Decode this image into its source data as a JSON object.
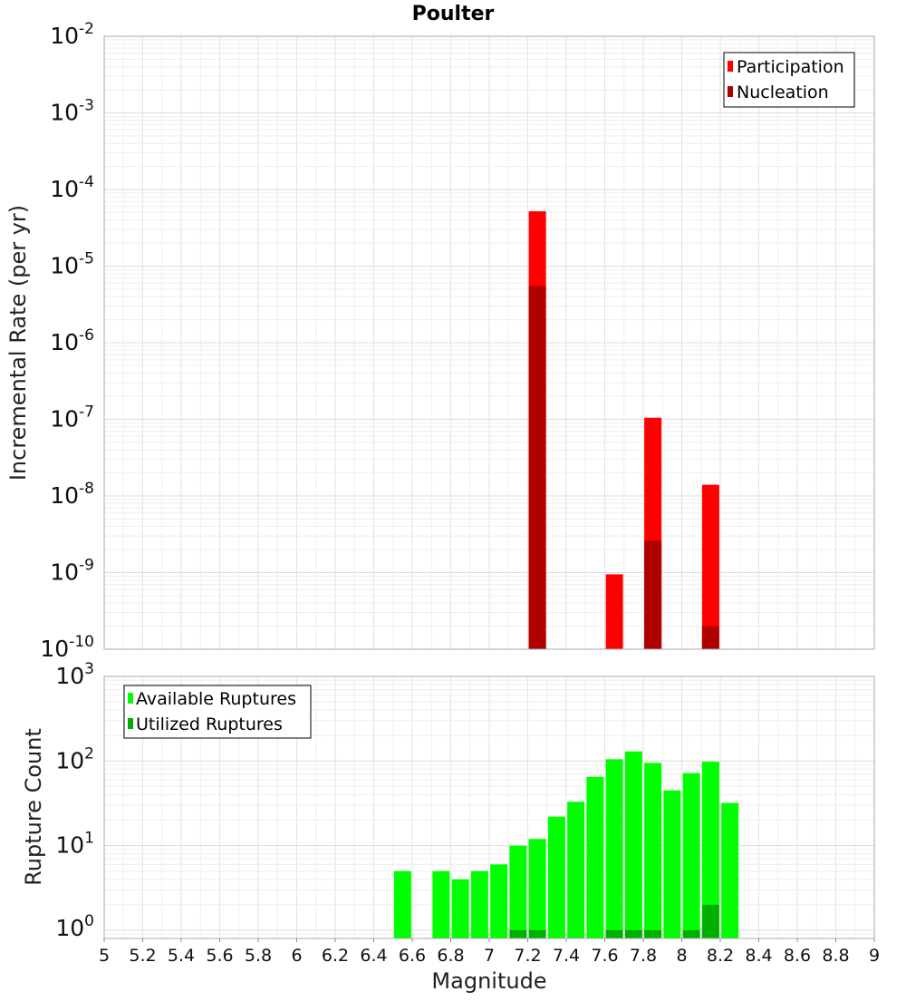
{
  "chart_data": [
    {
      "type": "bar",
      "title": "Poulter",
      "xlabel": "",
      "ylabel": "Incremental Rate (per yr)",
      "yscale": "log",
      "xlim": [
        5,
        9
      ],
      "ylim": [
        1e-10,
        0.01
      ],
      "y_tick_exponents": [
        "-10",
        "-9",
        "-8",
        "-7",
        "-6",
        "-5",
        "-4",
        "-3",
        "-2"
      ],
      "grid": true,
      "legend_position": "top-right",
      "x": [
        7.25,
        7.65,
        7.85,
        8.15
      ],
      "series": [
        {
          "name": "Participation",
          "color": "#ff0000",
          "values": [
            5.2e-05,
            9.5e-10,
            1.05e-07,
            1.4e-08
          ]
        },
        {
          "name": "Nucleation",
          "color": "#b00000",
          "values": [
            5.5e-06,
            null,
            2.6e-09,
            2e-10
          ]
        }
      ]
    },
    {
      "type": "bar",
      "title": "",
      "xlabel": "Magnitude",
      "ylabel": "Rupture Count",
      "yscale": "log",
      "xlim": [
        5,
        9
      ],
      "ylim": [
        0.8,
        1000
      ],
      "x_ticks": [
        "5",
        "5.2",
        "5.4",
        "5.6",
        "5.8",
        "6",
        "6.2",
        "6.4",
        "6.6",
        "6.8",
        "7",
        "7.2",
        "7.4",
        "7.6",
        "7.8",
        "8",
        "8.2",
        "8.4",
        "8.6",
        "8.8",
        "9"
      ],
      "y_tick_exponents": [
        "0",
        "1",
        "2",
        "3"
      ],
      "grid": true,
      "legend_position": "top-left",
      "x": [
        6.55,
        6.75,
        6.85,
        6.95,
        7.05,
        7.15,
        7.25,
        7.35,
        7.45,
        7.55,
        7.65,
        7.75,
        7.85,
        7.95,
        8.05,
        8.15,
        8.25
      ],
      "series": [
        {
          "name": "Available Ruptures",
          "color": "#00ff00",
          "values": [
            5,
            5,
            4,
            5,
            6,
            10,
            12,
            22,
            33,
            65,
            105,
            130,
            95,
            45,
            72,
            98,
            32
          ]
        },
        {
          "name": "Utilized Ruptures",
          "color": "#00b000",
          "values": [
            null,
            null,
            null,
            null,
            null,
            1,
            1,
            null,
            null,
            null,
            1,
            1,
            1,
            null,
            1,
            2,
            null
          ]
        }
      ]
    }
  ]
}
